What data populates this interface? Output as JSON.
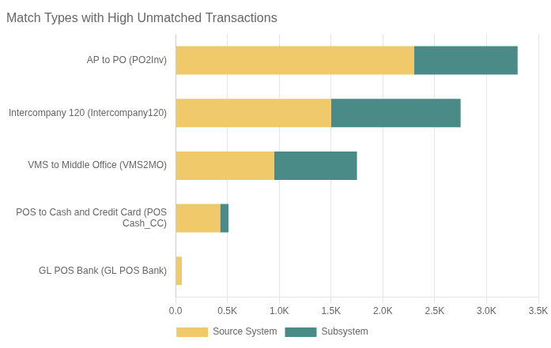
{
  "chart_data": {
    "type": "bar",
    "orientation": "horizontal",
    "stacked": true,
    "title": "Match Types with High Unmatched Transactions",
    "categories": [
      "GL POS Bank (GL POS Bank)",
      "POS to Cash and Credit Card (POS\nCash_CC)",
      "VMS to Middle Office (VMS2MO)",
      "Intercompany 120 (Intercompany120)",
      "AP to PO (PO2Inv)"
    ],
    "series": [
      {
        "name": "Source System",
        "color": "#F0C96A",
        "values": [
          60,
          430,
          950,
          1500,
          2300
        ]
      },
      {
        "name": "Subsystem",
        "color": "#4A8A87",
        "values": [
          0,
          80,
          800,
          1250,
          1000
        ]
      }
    ],
    "xlim": [
      0,
      3500
    ],
    "xticks": [
      {
        "value": 0,
        "label": "0.0"
      },
      {
        "value": 500,
        "label": "0.5K"
      },
      {
        "value": 1000,
        "label": "1.0K"
      },
      {
        "value": 1500,
        "label": "1.5K"
      },
      {
        "value": 2000,
        "label": "2.0K"
      },
      {
        "value": 2500,
        "label": "2.5K"
      },
      {
        "value": 3000,
        "label": "3.0K"
      },
      {
        "value": 3500,
        "label": "3.5K"
      }
    ],
    "grid": true,
    "legend": "bottom"
  }
}
